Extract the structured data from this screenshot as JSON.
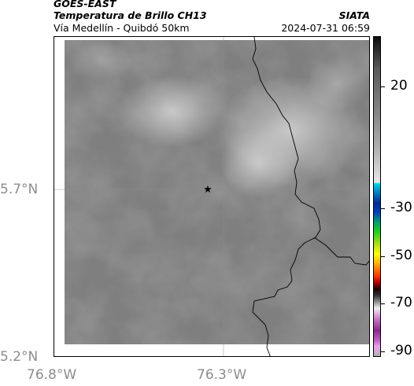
{
  "header": {
    "source": "GOES-EAST",
    "title": "Temperatura de Brillo CH13",
    "subtitle": "Vía Medellín - Quibdó 50km",
    "organization": "SIATA",
    "timestamp": "2024-07-31 06:59"
  },
  "map": {
    "lat_labels": [
      "5.7°N",
      "5.2°N"
    ],
    "lon_labels": [
      "76.8°W",
      "76.3°W"
    ],
    "marker": "star-marker"
  },
  "colorbar": {
    "labels": [
      "20",
      "-30",
      "-50",
      "-70",
      "-90"
    ]
  },
  "colors": {
    "frame": "#000000",
    "grid": "#8c8c8c",
    "coastline": "#000000"
  }
}
